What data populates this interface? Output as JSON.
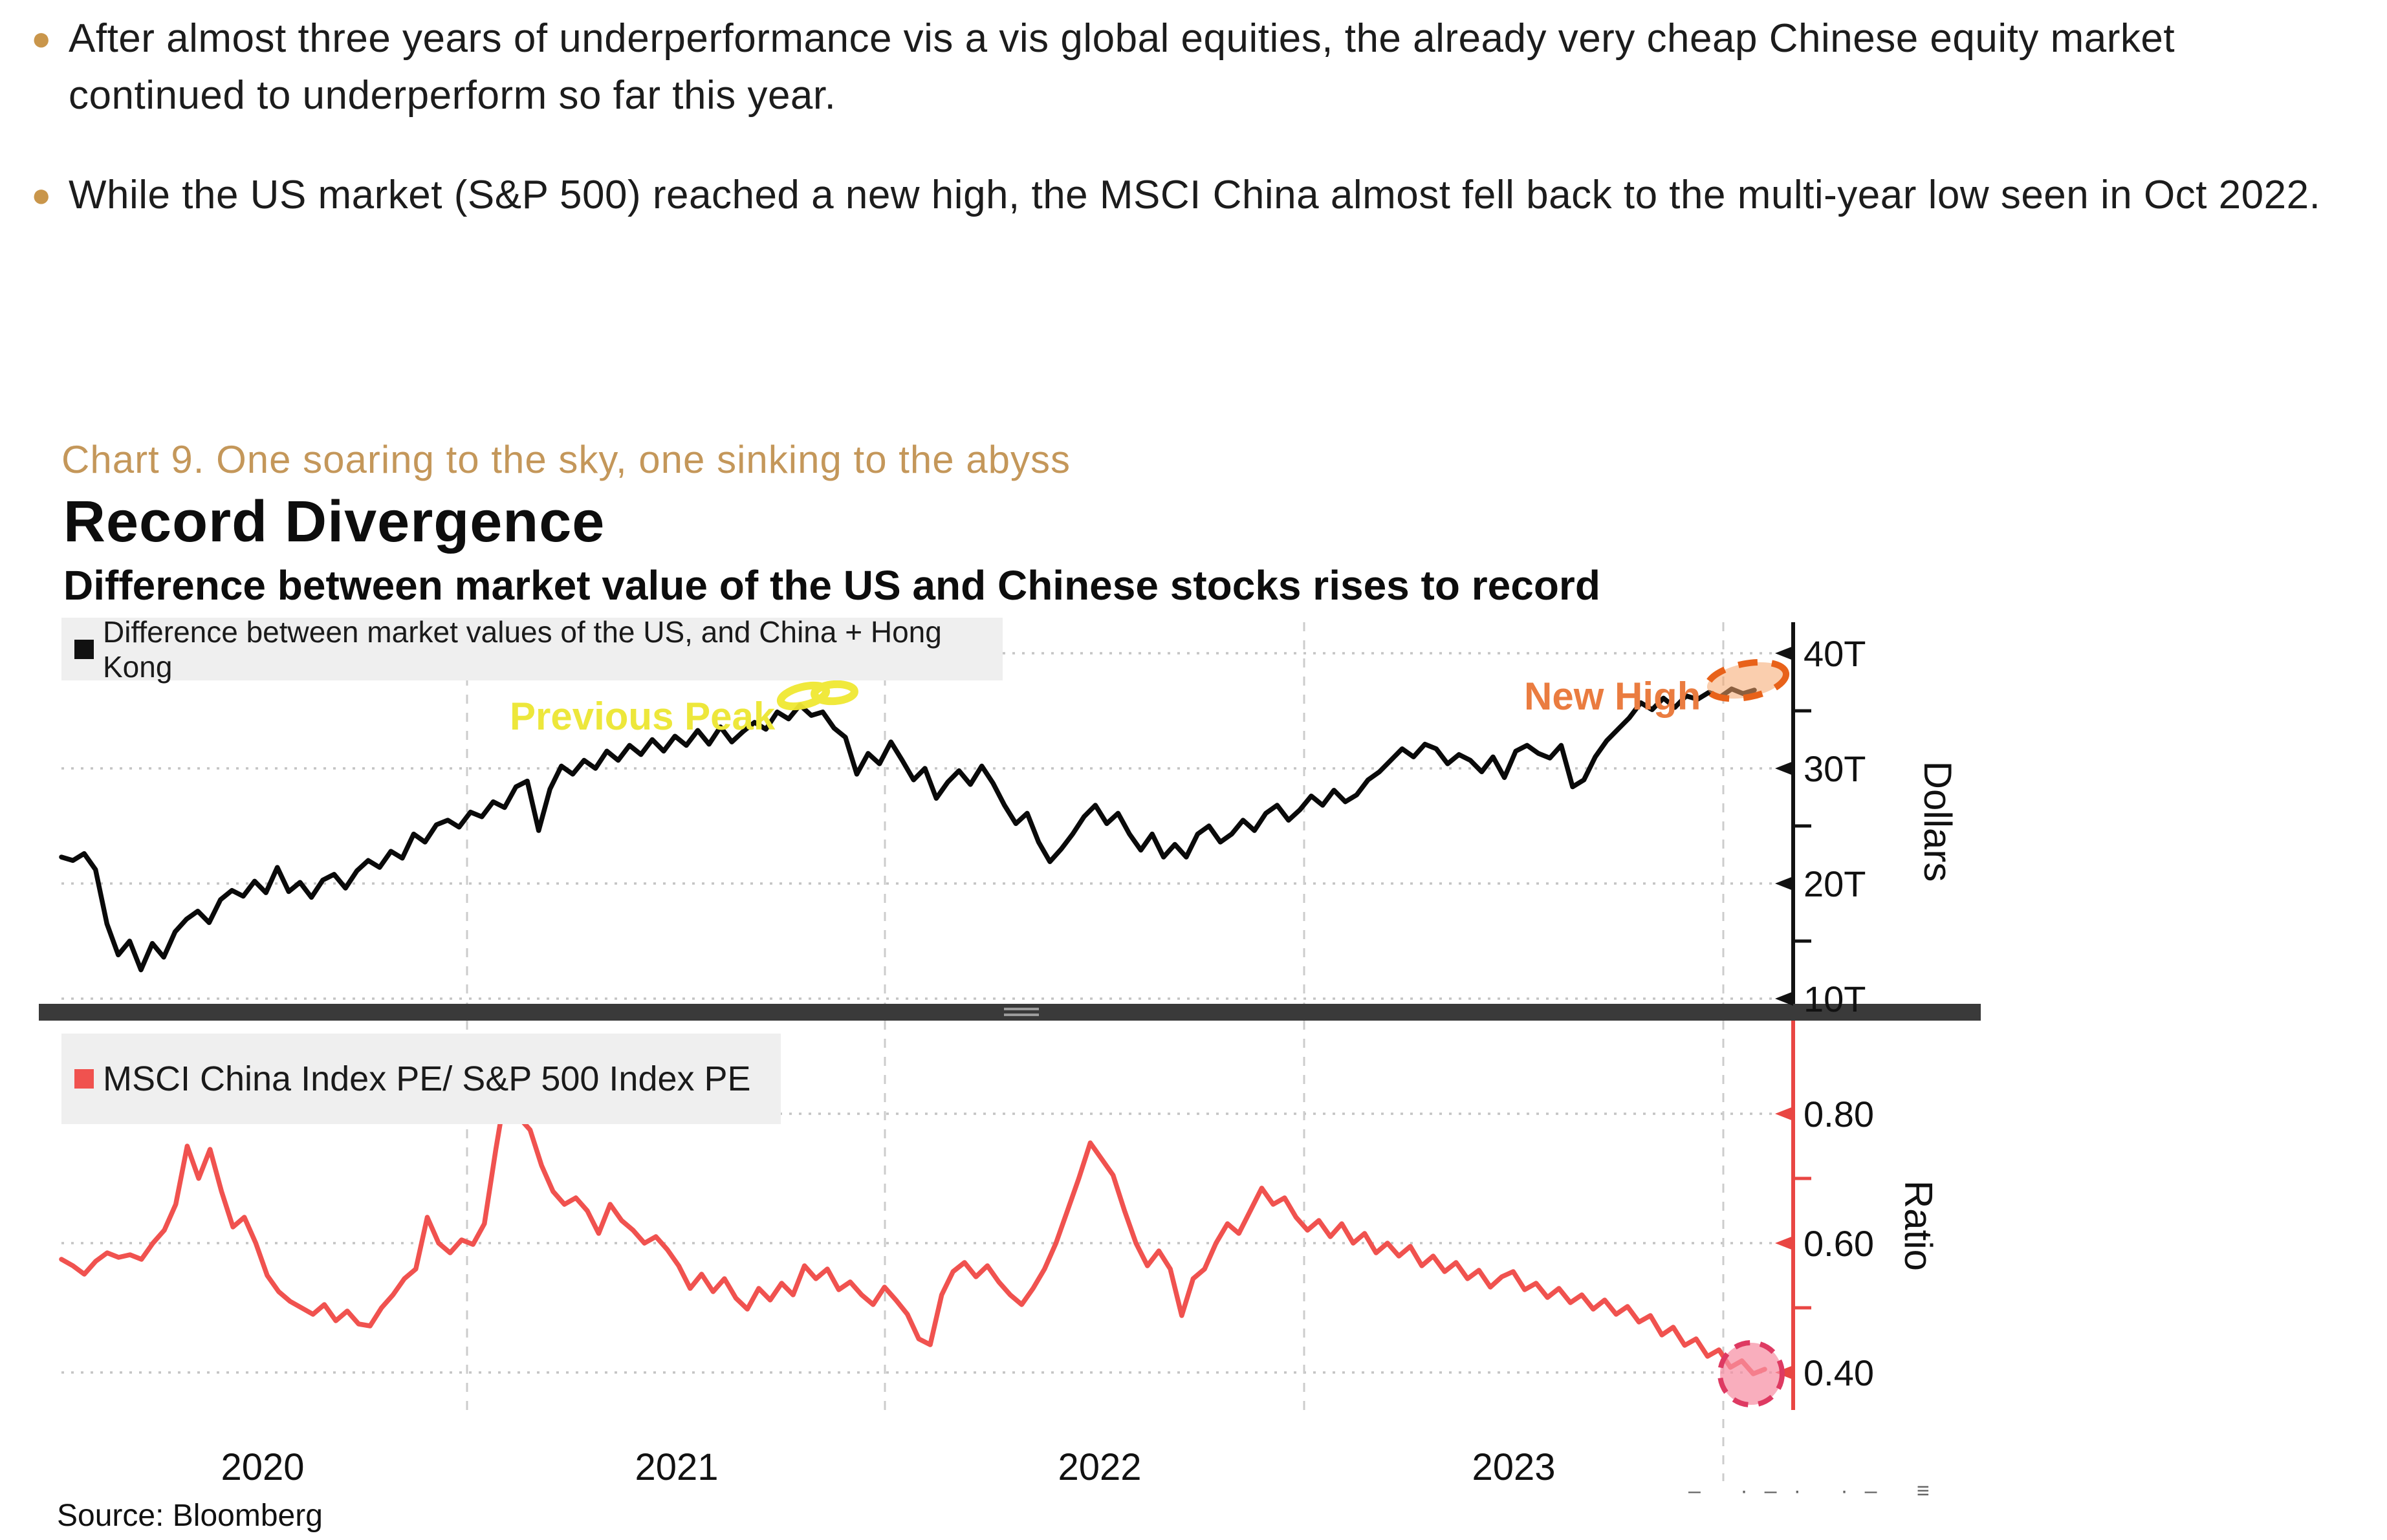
{
  "bullets": [
    {
      "text": "After almost three years of underperformance vis a vis global equities, the already very cheap Chinese equity market continued to underperform so far this year."
    },
    {
      "text": "While the US market (S&P 500) reached a new high, the MSCI China almost fell back to the multi-year low seen in Oct 2022."
    }
  ],
  "caption": "Chart 9. One soaring to the sky, one sinking to the abyss",
  "chart": {
    "title": "Record Divergence",
    "subtitle": "Difference between market value of the US and Chinese stocks rises to record",
    "source": "Source: Bloomberg",
    "clipped_marks": "– ·–· ·– ≡",
    "colors": {
      "top_series": "#0a0a0a",
      "bottom_series": "#F0524F",
      "bottom_axis": "#E94643",
      "previous_peak": "#EDE73B",
      "new_high": "#EA7C40",
      "caption_gold": "#C4975A",
      "legend_background": "#EFEFEF"
    }
  },
  "chart_data": {
    "type": "line",
    "x_ticks": [
      "2020",
      "2021",
      "2022",
      "2023"
    ],
    "grid": "dotted horizontal at labeled ticks, dashed vertical at year boundaries",
    "panels": [
      {
        "name": "market_value_difference",
        "legend": "Difference between market values of the US, and China + Hong Kong",
        "ylabel": "Dollars",
        "unit": "trillion USD",
        "ylim": [
          9,
          42.5
        ],
        "yticks": [
          {
            "label": "40T",
            "value": 40
          },
          {
            "label": "30T",
            "value": 30
          },
          {
            "label": "20T",
            "value": 20
          },
          {
            "label": "10T",
            "value": 10
          }
        ],
        "minor_ticks": [
          35,
          25,
          15
        ],
        "color": "#0a0a0a",
        "values": [
          22.3,
          22.0,
          22.6,
          21.2,
          16.5,
          13.8,
          15.0,
          12.5,
          14.8,
          13.6,
          15.8,
          16.9,
          17.6,
          16.6,
          18.6,
          19.4,
          18.9,
          20.2,
          19.2,
          21.4,
          19.3,
          20.1,
          18.8,
          20.3,
          20.8,
          19.6,
          21.1,
          22.0,
          21.4,
          22.8,
          22.2,
          24.3,
          23.6,
          25.1,
          25.5,
          24.9,
          26.2,
          25.8,
          27.1,
          26.6,
          28.4,
          28.9,
          24.6,
          28.2,
          30.2,
          29.5,
          30.7,
          30.0,
          31.5,
          30.7,
          32.0,
          31.2,
          32.5,
          31.5,
          32.8,
          32.0,
          33.3,
          32.1,
          33.6,
          32.3,
          33.2,
          34.0,
          33.4,
          34.9,
          34.3,
          35.5,
          34.6,
          34.9,
          33.5,
          32.7,
          29.5,
          31.3,
          30.4,
          32.3,
          30.7,
          29.0,
          30.0,
          27.4,
          28.8,
          29.8,
          28.6,
          30.2,
          28.7,
          26.8,
          25.2,
          26.1,
          23.6,
          21.9,
          23.0,
          24.3,
          25.8,
          26.8,
          25.2,
          26.1,
          24.3,
          22.9,
          24.3,
          22.3,
          23.4,
          22.3,
          24.3,
          25.0,
          23.6,
          24.3,
          25.5,
          24.6,
          26.1,
          26.8,
          25.5,
          26.4,
          27.6,
          26.8,
          28.1,
          27.1,
          27.7,
          29.0,
          29.7,
          30.7,
          31.7,
          31.0,
          32.1,
          31.7,
          30.4,
          31.2,
          30.7,
          29.7,
          31.0,
          29.2,
          31.5,
          32.0,
          31.3,
          30.9,
          32.0,
          28.4,
          29.0,
          31.0,
          32.4,
          33.4,
          34.4,
          35.7,
          35.1,
          36.1,
          35.3,
          36.3,
          36.0,
          36.6,
          36.2,
          36.9,
          36.5,
          36.8
        ]
      },
      {
        "name": "pe_ratio",
        "legend": "MSCI China Index PE/ S&P 500 Index PE",
        "ylabel": "Ratio",
        "unit": "ratio",
        "ylim": [
          0.3,
          0.92
        ],
        "yticks": [
          {
            "label": "0.80",
            "value": 0.8
          },
          {
            "label": "0.60",
            "value": 0.6
          },
          {
            "label": "0.40",
            "value": 0.4
          }
        ],
        "minor_ticks": [
          0.7,
          0.5
        ],
        "color": "#F0524F",
        "values": [
          0.575,
          0.565,
          0.552,
          0.572,
          0.585,
          0.578,
          0.582,
          0.575,
          0.6,
          0.62,
          0.66,
          0.75,
          0.7,
          0.745,
          0.68,
          0.625,
          0.64,
          0.6,
          0.55,
          0.525,
          0.51,
          0.5,
          0.49,
          0.505,
          0.48,
          0.495,
          0.475,
          0.472,
          0.5,
          0.52,
          0.545,
          0.56,
          0.64,
          0.6,
          0.585,
          0.605,
          0.598,
          0.63,
          0.745,
          0.85,
          0.795,
          0.775,
          0.72,
          0.68,
          0.66,
          0.67,
          0.65,
          0.615,
          0.66,
          0.635,
          0.62,
          0.6,
          0.61,
          0.59,
          0.565,
          0.53,
          0.552,
          0.525,
          0.545,
          0.515,
          0.498,
          0.53,
          0.512,
          0.538,
          0.52,
          0.565,
          0.545,
          0.56,
          0.528,
          0.54,
          0.52,
          0.505,
          0.532,
          0.512,
          0.49,
          0.452,
          0.443,
          0.52,
          0.556,
          0.57,
          0.548,
          0.565,
          0.54,
          0.52,
          0.505,
          0.53,
          0.56,
          0.6,
          0.65,
          0.7,
          0.755,
          0.73,
          0.705,
          0.65,
          0.6,
          0.565,
          0.588,
          0.56,
          0.488,
          0.545,
          0.56,
          0.6,
          0.63,
          0.615,
          0.65,
          0.685,
          0.66,
          0.67,
          0.64,
          0.62,
          0.635,
          0.61,
          0.63,
          0.6,
          0.615,
          0.585,
          0.6,
          0.58,
          0.595,
          0.565,
          0.58,
          0.556,
          0.57,
          0.545,
          0.558,
          0.532,
          0.548,
          0.556,
          0.528,
          0.538,
          0.516,
          0.53,
          0.508,
          0.52,
          0.498,
          0.512,
          0.49,
          0.502,
          0.478,
          0.488,
          0.458,
          0.47,
          0.442,
          0.452,
          0.425,
          0.435,
          0.408,
          0.418,
          0.398,
          0.405
        ]
      }
    ],
    "annotations": [
      {
        "id": "previous_peak",
        "text": "Previous Peak",
        "panel": 0,
        "note": "yellow label with scribble highlight at late-2021 peak ~35.5T"
      },
      {
        "id": "new_high",
        "text": "New High",
        "panel": 0,
        "note": "orange label with dashed ellipse at early-2024 high ~37T"
      },
      {
        "id": "ratio_low_circle",
        "text": "",
        "panel": 1,
        "note": "dashed pink circle at final ratio low ~0.40"
      }
    ]
  }
}
